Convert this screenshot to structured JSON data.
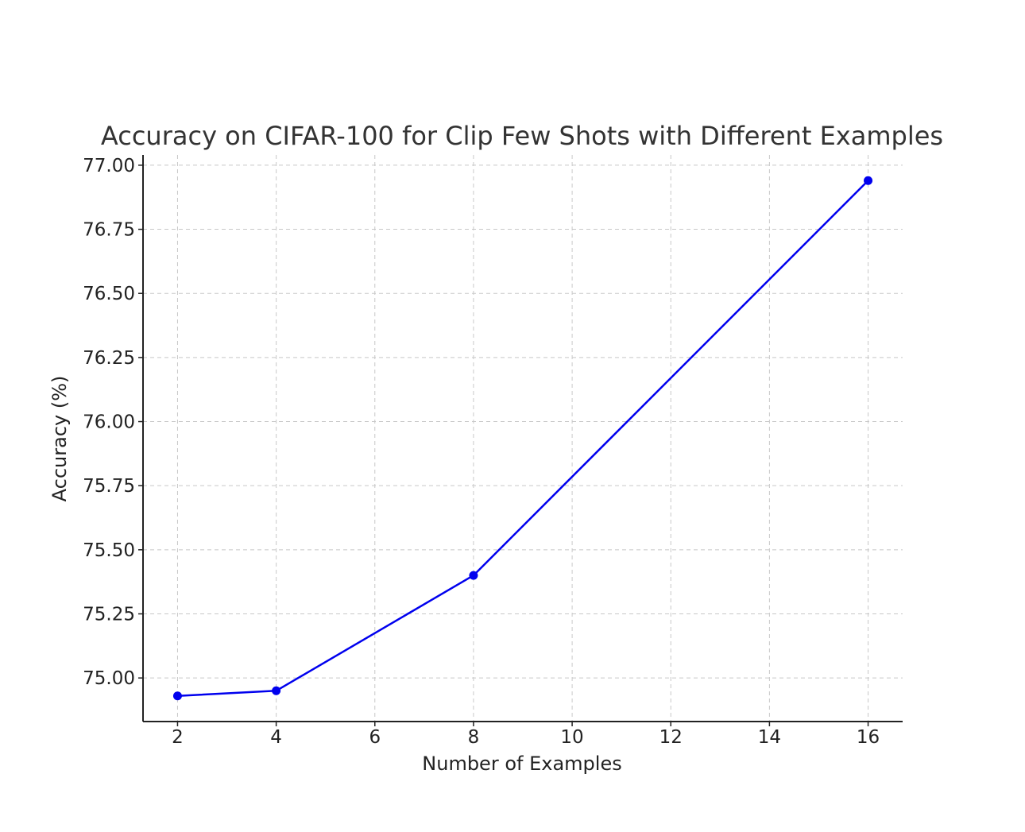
{
  "chart_data": {
    "type": "line",
    "title": "Accuracy on CIFAR-100 for Clip Few Shots with Different Examples",
    "xlabel": "Number of Examples",
    "ylabel": "Accuracy (%)",
    "x": [
      2,
      4,
      8,
      16
    ],
    "series": [
      {
        "values": [
          74.93,
          74.95,
          75.4,
          76.94
        ],
        "color": "#0000ee",
        "marker": "circle"
      }
    ],
    "xlim": [
      1.3,
      16.7
    ],
    "ylim": [
      74.83,
      77.04
    ],
    "xticks": [
      2,
      4,
      6,
      8,
      10,
      12,
      14,
      16
    ],
    "xtick_labels": [
      "2",
      "4",
      "6",
      "8",
      "10",
      "12",
      "14",
      "16"
    ],
    "yticks": [
      75.0,
      75.25,
      75.5,
      75.75,
      76.0,
      76.25,
      76.5,
      76.75,
      77.0
    ],
    "ytick_labels": [
      "75.00",
      "75.25",
      "75.50",
      "75.75",
      "76.00",
      "76.25",
      "76.50",
      "76.75",
      "77.00"
    ],
    "grid": true,
    "grid_style": "dashed",
    "grid_color": "#c8c8c8",
    "axis_color": "#222222",
    "title_color": "#333333"
  }
}
